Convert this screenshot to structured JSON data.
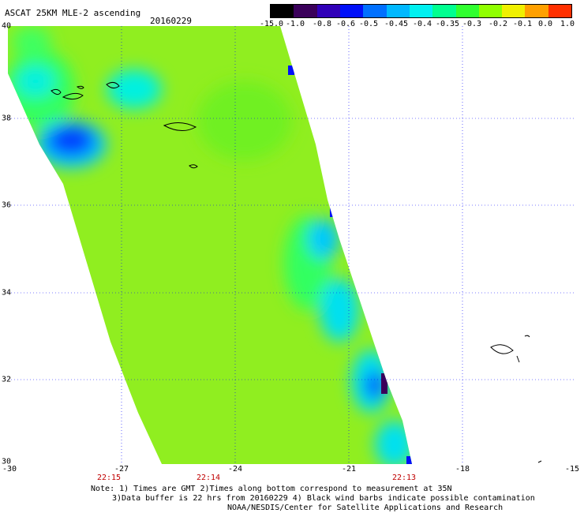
{
  "header": {
    "title": "ASCAT 25KM MLE-2 ascending",
    "date": "20160229"
  },
  "colorbar": {
    "labels": [
      "-15.0",
      "-1.0",
      "-0.8",
      "-0.6",
      "-0.5",
      "-0.45",
      "-0.4",
      "-0.35",
      "-0.3",
      "-0.2",
      "-0.1",
      "0.0",
      "1.0"
    ],
    "colors": [
      "#000000",
      "#3a005a",
      "#3a00c8",
      "#0020ff",
      "#0080ff",
      "#00c8ff",
      "#00ffe0",
      "#00ff90",
      "#30ff30",
      "#90ff00",
      "#e0f000",
      "#ffa000",
      "#ff3000"
    ]
  },
  "axes": {
    "lat_labels": [
      "40",
      "38",
      "36",
      "34",
      "32",
      "30"
    ],
    "lon_labels": [
      "-30",
      "-27",
      "-24",
      "-21",
      "-18",
      "-15"
    ],
    "time_labels": [
      "22:15",
      "22:14",
      "22:13"
    ]
  },
  "footer": {
    "line1": "Note: 1) Times are GMT 2)Times along bottom correspond to measurement at 35N",
    "line2": "3)Data buffer is 22 hrs from 20160229 4) Black wind barbs indicate possible contamination",
    "line3": "NOAA/NESDIS/Center for Satellite Applications and Research"
  },
  "map": {
    "lon_range": [
      -30,
      -15
    ],
    "lat_range": [
      30,
      40
    ],
    "background_color": "#90ee20"
  }
}
